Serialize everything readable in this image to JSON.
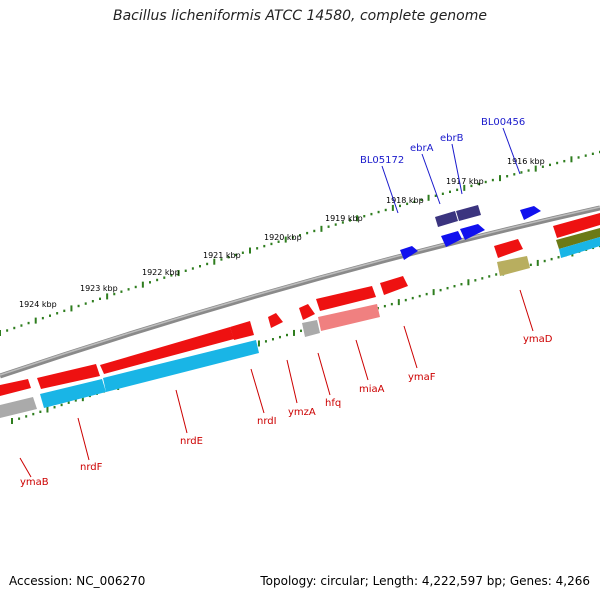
{
  "title": "Bacillus licheniformis ATCC 14580, complete genome",
  "footer": {
    "accession": "Accession: NC_006270",
    "topology": "Topology: circular; Length: 4,222,597 bp; Genes: 4,266"
  },
  "colors": {
    "label_top": "#1a1acc",
    "label_bottom": "#cc0000",
    "tick_dots": "#2e7d1e",
    "backbone": "#777777",
    "red_gene": "#ee1111",
    "cds_cyan": "#19b5e6",
    "gray_gene": "#aaaaaa",
    "pink_gene": "#f08080",
    "navy_gene": "#3b347f",
    "blue_gene": "#1111ee",
    "olive_gene": "#6b7a16",
    "khaki_gene": "#b8ae5f"
  },
  "kbp_labels": [
    "1916 kbp",
    "1917 kbp",
    "1918 kbp",
    "1919 kbp",
    "1920 kbp",
    "1921 kbp",
    "1922 kbp",
    "1923 kbp",
    "1924 kbp"
  ],
  "top_gene_labels": [
    "BL05172",
    "ebrA",
    "ebrB",
    "BL00456"
  ],
  "bottom_gene_labels": [
    "ymaB",
    "nrdF",
    "nrdE",
    "nrdI",
    "ymzA",
    "hfq",
    "miaA",
    "ymaF",
    "ymaD"
  ]
}
